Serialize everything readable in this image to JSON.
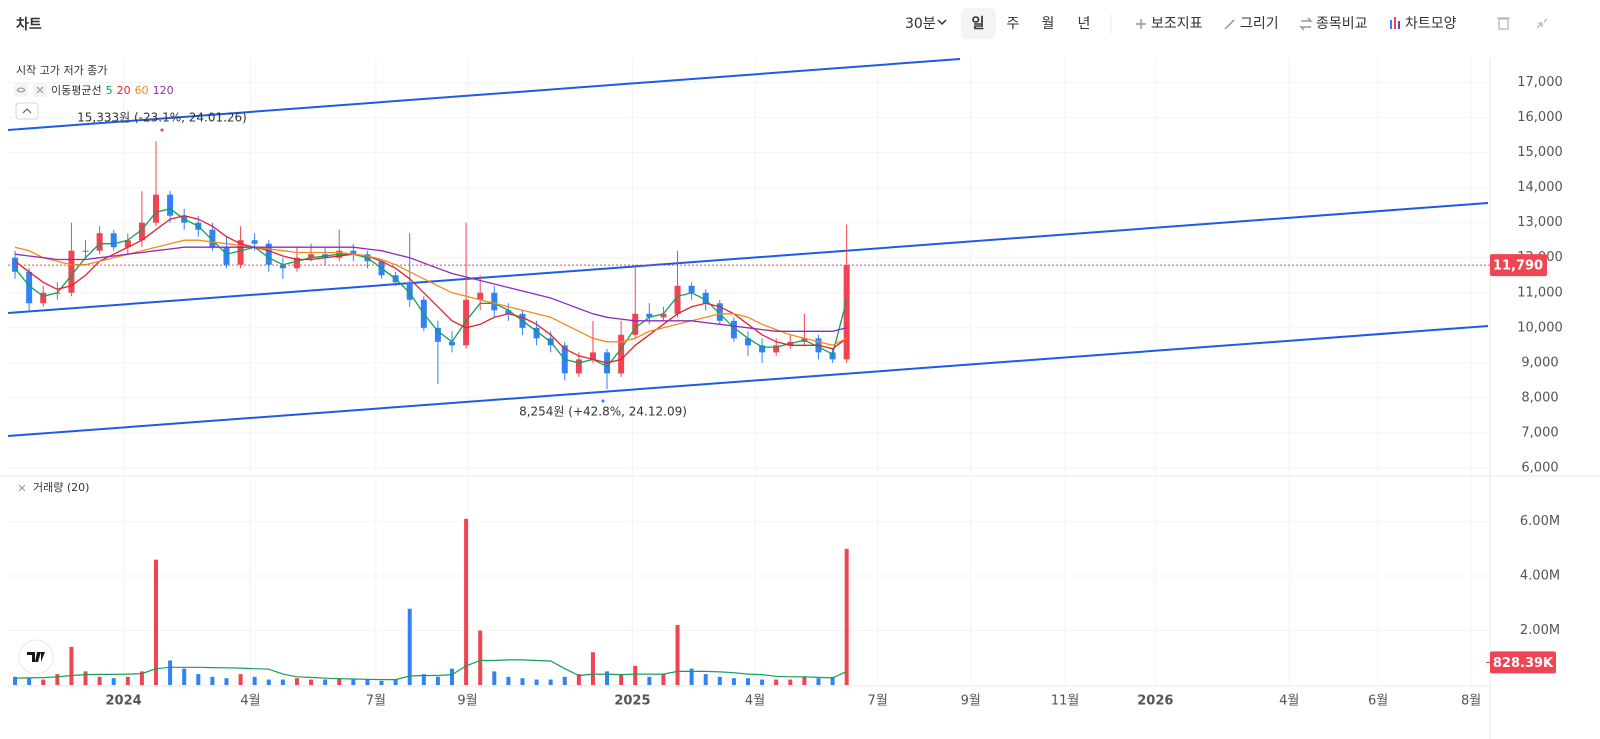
{
  "toolbar": {
    "title": "차트",
    "interval": "30분",
    "periods": [
      "일",
      "주",
      "월",
      "년"
    ],
    "tools": [
      "보조지표",
      "그리기",
      "종목비교",
      "차트모양"
    ]
  },
  "chart_data": [
    {
      "type": "candlestick",
      "title": "시작 고가 저가 종가",
      "ma_label": "이동평균선",
      "up_color": "#f04452",
      "down_color": "#3182f6",
      "grid": true,
      "open": [
        12000,
        11600,
        10700,
        11000,
        11000,
        12200,
        12200,
        12700,
        12300,
        12500,
        13000,
        13800,
        13200,
        13000,
        12800,
        12300,
        11800,
        12500,
        12400,
        11800,
        11700,
        12000,
        12100,
        12000,
        12200,
        12100,
        11900,
        11500,
        11300,
        10800,
        10000,
        9600,
        9500,
        10800,
        11000,
        10500,
        10400,
        10000,
        9700,
        9500,
        8700,
        9100,
        9300,
        8700,
        9800,
        10400,
        10300,
        10400,
        11200,
        11000,
        10700,
        10200,
        9700,
        9500,
        9300,
        9500,
        9600,
        9700,
        9300,
        9100
      ],
      "high": [
        12200,
        11700,
        11200,
        11300,
        13000,
        12500,
        12900,
        12800,
        12700,
        13900,
        15333,
        13900,
        13400,
        13200,
        13000,
        12600,
        12900,
        12700,
        12500,
        12000,
        12300,
        12400,
        12300,
        12800,
        12400,
        12200,
        11800,
        11600,
        12700,
        10900,
        10200,
        9900,
        13000,
        11500,
        11200,
        10700,
        10500,
        10200,
        9900,
        9600,
        9300,
        10200,
        9400,
        10200,
        11800,
        10700,
        10600,
        12200,
        11300,
        11100,
        10800,
        10300,
        9900,
        9700,
        9700,
        9800,
        10400,
        9800,
        9400,
        12950
      ],
      "low": [
        11400,
        10500,
        10600,
        10800,
        10900,
        12000,
        12100,
        12200,
        12100,
        12300,
        12900,
        13000,
        12800,
        12600,
        12200,
        11700,
        11700,
        12200,
        11600,
        11400,
        11600,
        11900,
        11800,
        11900,
        11900,
        11700,
        11400,
        11200,
        10600,
        9900,
        8400,
        9300,
        9400,
        10500,
        10300,
        10200,
        9800,
        9500,
        9300,
        8500,
        8600,
        9000,
        8254,
        8600,
        9700,
        10100,
        10200,
        10300,
        10800,
        10500,
        10100,
        9600,
        9200,
        9000,
        9200,
        9400,
        9500,
        9100,
        9000,
        9000
      ],
      "close": [
        11600,
        10700,
        11000,
        11000,
        12200,
        12200,
        12700,
        12300,
        12500,
        13000,
        13800,
        13200,
        13000,
        12800,
        12300,
        11800,
        12500,
        12400,
        11800,
        11700,
        12000,
        12100,
        12000,
        12200,
        12100,
        11900,
        11500,
        11300,
        10800,
        10000,
        9600,
        9500,
        10800,
        11000,
        10500,
        10400,
        10000,
        9700,
        9500,
        8700,
        9100,
        9300,
        8700,
        9800,
        10400,
        10300,
        10400,
        11200,
        11000,
        10700,
        10200,
        9700,
        9500,
        9300,
        9500,
        9600,
        9700,
        9300,
        9100,
        11790
      ],
      "moving_averages": [
        {
          "name": "5",
          "color": "#13a05a",
          "values": [
            11700,
            11200,
            10900,
            11000,
            11500,
            12000,
            12400,
            12400,
            12500,
            12800,
            13300,
            13400,
            13100,
            12900,
            12500,
            12100,
            12200,
            12300,
            12000,
            11800,
            11900,
            12000,
            12050,
            12100,
            12100,
            12000,
            11700,
            11400,
            11000,
            10400,
            9900,
            9600,
            10200,
            10700,
            10700,
            10500,
            10200,
            9900,
            9600,
            9100,
            9000,
            9100,
            8900,
            9400,
            10000,
            10300,
            10400,
            10900,
            11000,
            10800,
            10400,
            10000,
            9700,
            9450,
            9450,
            9550,
            9650,
            9450,
            9250,
            10800
          ]
        },
        {
          "name": "20",
          "color": "#e0242e",
          "values": [
            11900,
            11600,
            11300,
            11100,
            11200,
            11500,
            11900,
            12100,
            12300,
            12500,
            12800,
            13100,
            13200,
            13100,
            12900,
            12600,
            12400,
            12300,
            12200,
            12050,
            11950,
            11950,
            12000,
            12050,
            12100,
            12050,
            11900,
            11700,
            11400,
            11000,
            10600,
            10200,
            10000,
            10100,
            10300,
            10400,
            10300,
            10100,
            9800,
            9400,
            9200,
            9100,
            9000,
            9100,
            9500,
            9800,
            10100,
            10400,
            10600,
            10700,
            10600,
            10400,
            10100,
            9800,
            9600,
            9500,
            9500,
            9500,
            9400,
            9700
          ]
        },
        {
          "name": "60",
          "color": "#f28a1c",
          "values": [
            12300,
            12200,
            12000,
            11900,
            11800,
            11800,
            11900,
            12000,
            12100,
            12200,
            12300,
            12400,
            12500,
            12500,
            12450,
            12400,
            12350,
            12300,
            12250,
            12200,
            12150,
            12150,
            12150,
            12150,
            12100,
            12050,
            11950,
            11800,
            11600,
            11400,
            11200,
            11000,
            10900,
            10800,
            10700,
            10600,
            10500,
            10400,
            10300,
            10100,
            9900,
            9700,
            9600,
            9600,
            9700,
            9900,
            10000,
            10100,
            10200,
            10300,
            10400,
            10400,
            10300,
            10100,
            9950,
            9800,
            9700,
            9600,
            9500,
            9700
          ]
        },
        {
          "name": "120",
          "color": "#8e2bc0",
          "values": [
            12100,
            12050,
            12000,
            11950,
            11950,
            11950,
            12000,
            12050,
            12100,
            12150,
            12200,
            12250,
            12300,
            12300,
            12300,
            12300,
            12300,
            12300,
            12300,
            12300,
            12300,
            12300,
            12300,
            12300,
            12300,
            12250,
            12200,
            12100,
            12000,
            11850,
            11700,
            11550,
            11450,
            11350,
            11250,
            11150,
            11050,
            10950,
            10850,
            10700,
            10550,
            10400,
            10300,
            10250,
            10200,
            10200,
            10200,
            10200,
            10200,
            10150,
            10100,
            10050,
            10000,
            9950,
            9900,
            9900,
            9900,
            9900,
            9900,
            10000
          ]
        }
      ],
      "annotations": [
        "15,333원 (-23.1%, 24.01.26)",
        "8,254원 (+42.8%, 24.12.09)"
      ],
      "current_value": {
        "value": 11790,
        "label": "11,790"
      },
      "xlim": [
        -0.5,
        104.5
      ],
      "ylim": [
        5800,
        17700
      ],
      "yticks": [
        {
          "value": 6000,
          "label": "6,000"
        },
        {
          "value": 7000,
          "label": "7,000"
        },
        {
          "value": 8000,
          "label": "8,000"
        },
        {
          "value": 9000,
          "label": "9,000"
        },
        {
          "value": 10000,
          "label": "10,000"
        },
        {
          "value": 11000,
          "label": "11,000"
        },
        {
          "value": 12000,
          "label": "12,000"
        },
        {
          "value": 13000,
          "label": "13,000"
        },
        {
          "value": 14000,
          "label": "14,000"
        },
        {
          "value": 15000,
          "label": "15,000"
        },
        {
          "value": 16000,
          "label": "16,000"
        },
        {
          "value": 17000,
          "label": "17,000"
        }
      ],
      "xticks": [
        {
          "value": 7.7,
          "label": "2024"
        },
        {
          "value": 16.7,
          "label": "4월"
        },
        {
          "value": 25.6,
          "label": "7월"
        },
        {
          "value": 32.1,
          "label": "9월"
        },
        {
          "value": 43.8,
          "label": "2025"
        },
        {
          "value": 52.5,
          "label": "4월"
        },
        {
          "value": 61.2,
          "label": "7월"
        },
        {
          "value": 67.8,
          "label": "9월"
        },
        {
          "value": 74.5,
          "label": "11월"
        },
        {
          "value": 80.9,
          "label": "2026"
        },
        {
          "value": 90.4,
          "label": "4월"
        },
        {
          "value": 96.7,
          "label": "6월"
        },
        {
          "value": 103.3,
          "label": "8월"
        }
      ]
    },
    {
      "type": "bar",
      "title": "거래량 (20)",
      "grid": true,
      "values": [
        300000,
        250000,
        200000,
        400000,
        1400000,
        500000,
        300000,
        250000,
        300000,
        500000,
        4600000,
        900000,
        600000,
        400000,
        300000,
        250000,
        400000,
        300000,
        200000,
        200000,
        250000,
        200000,
        200000,
        250000,
        200000,
        200000,
        150000,
        200000,
        2800000,
        400000,
        300000,
        600000,
        6100000,
        2000000,
        500000,
        300000,
        250000,
        200000,
        200000,
        300000,
        400000,
        1200000,
        500000,
        400000,
        700000,
        300000,
        400000,
        2200000,
        600000,
        400000,
        300000,
        250000,
        250000,
        200000,
        200000,
        200000,
        300000,
        250000,
        300000,
        5000000
      ],
      "ma": {
        "color": "#13a05a",
        "values": [
          250000,
          260000,
          270000,
          300000,
          350000,
          380000,
          390000,
          390000,
          400000,
          420000,
          600000,
          650000,
          650000,
          650000,
          640000,
          630000,
          620000,
          600000,
          580000,
          400000,
          300000,
          280000,
          250000,
          230000,
          220000,
          210000,
          200000,
          200000,
          330000,
          350000,
          350000,
          380000,
          700000,
          900000,
          900000,
          920000,
          920000,
          900000,
          880000,
          600000,
          350000,
          400000,
          400000,
          380000,
          400000,
          400000,
          400000,
          500000,
          500000,
          500000,
          480000,
          450000,
          400000,
          380000,
          320000,
          300000,
          300000,
          280000,
          260000,
          500000
        ]
      },
      "current_value": {
        "value": 828390,
        "label": "828.39K"
      },
      "ylim": [
        0,
        7600000
      ],
      "yticks": [
        {
          "value": 2000000,
          "label": "2.00M"
        },
        {
          "value": 4000000,
          "label": "4.00M"
        },
        {
          "value": 6000000,
          "label": "6.00M"
        }
      ]
    }
  ]
}
